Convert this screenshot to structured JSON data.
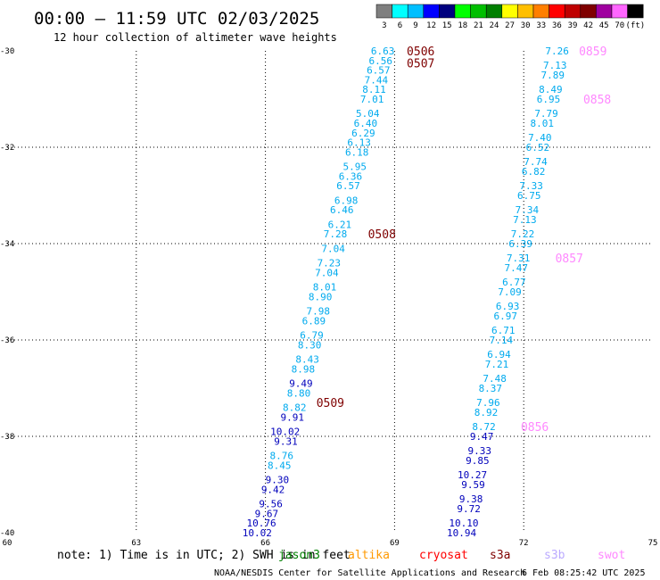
{
  "header": {
    "title": "00:00 – 11:59 UTC 02/03/2025",
    "subtitle": "12 hour collection of altimeter wave heights"
  },
  "colorbar": {
    "labels": [
      "3",
      "6",
      "9",
      "12",
      "15",
      "18",
      "21",
      "24",
      "27",
      "30",
      "33",
      "36",
      "39",
      "42",
      "45",
      "70",
      "(ft)"
    ],
    "colors": [
      "#7f7f7f",
      "#00ffff",
      "#00bfff",
      "#0000ff",
      "#00007f",
      "#00ff00",
      "#00bf00",
      "#007f00",
      "#ffff00",
      "#ffbf00",
      "#ff7f00",
      "#ff0000",
      "#bf0000",
      "#7f0000",
      "#9f009f",
      "#ff66ff",
      "#000000"
    ]
  },
  "footer": {
    "note": "note: 1) Time is in UTC; 2) SWH is in feet",
    "credit": "NOAA/NESDIS Center for Satellite Applications and Research",
    "timestamp": "6 Feb 08:25:42 UTC 2025"
  },
  "legend": [
    {
      "name": "jason3",
      "color": "#007f00"
    },
    {
      "name": "altika",
      "color": "#ff9900"
    },
    {
      "name": "cryosat",
      "color": "#ff0000"
    },
    {
      "name": "s3a",
      "color": "#7f0000"
    },
    {
      "name": "s3b",
      "color": "#bbaaff"
    },
    {
      "name": "swot",
      "color": "#ff88ff"
    }
  ],
  "chart_data": {
    "type": "scatter",
    "xlim": [
      60,
      75
    ],
    "ylim": [
      -40,
      -30
    ],
    "xticks": [
      60,
      63,
      66,
      69,
      72,
      75
    ],
    "yticks": [
      -30,
      -32,
      -34,
      -36,
      -38,
      -40
    ],
    "grid": true,
    "series": [
      {
        "name": "s3a",
        "color": "#7f0000",
        "passes": [
          {
            "label": "0506",
            "lon": 69.2,
            "lat": -30.0
          },
          {
            "label": "0507",
            "lon": 69.2,
            "lat": -30.25
          },
          {
            "label": "0508",
            "lon": 68.3,
            "lat": -33.8
          },
          {
            "label": "0509",
            "lon": 67.1,
            "lat": -37.3
          }
        ],
        "points": [
          {
            "lon": 69.0,
            "lat": -30.0,
            "v": "6.63"
          },
          {
            "lon": 68.95,
            "lat": -30.2,
            "v": "6.56"
          },
          {
            "lon": 68.9,
            "lat": -30.4,
            "v": "6.57"
          },
          {
            "lon": 68.85,
            "lat": -30.6,
            "v": "7.44"
          },
          {
            "lon": 68.8,
            "lat": -30.8,
            "v": "8.11"
          },
          {
            "lon": 68.75,
            "lat": -31.0,
            "v": "7.01"
          },
          {
            "lon": 68.65,
            "lat": -31.3,
            "v": "5.04"
          },
          {
            "lon": 68.6,
            "lat": -31.5,
            "v": "6.40"
          },
          {
            "lon": 68.55,
            "lat": -31.7,
            "v": "6.29"
          },
          {
            "lon": 68.45,
            "lat": -31.9,
            "v": "6.13"
          },
          {
            "lon": 68.4,
            "lat": -32.1,
            "v": "6.18"
          },
          {
            "lon": 68.35,
            "lat": -32.4,
            "v": "5.95"
          },
          {
            "lon": 68.25,
            "lat": -32.6,
            "v": "6.36"
          },
          {
            "lon": 68.2,
            "lat": -32.8,
            "v": "6.57"
          },
          {
            "lon": 68.15,
            "lat": -33.1,
            "v": "6.98"
          },
          {
            "lon": 68.05,
            "lat": -33.3,
            "v": "6.46"
          },
          {
            "lon": 68.0,
            "lat": -33.6,
            "v": "6.21"
          },
          {
            "lon": 67.9,
            "lat": -33.8,
            "v": "7.28"
          },
          {
            "lon": 67.85,
            "lat": -34.1,
            "v": "7.04"
          },
          {
            "lon": 67.75,
            "lat": -34.4,
            "v": "7.23"
          },
          {
            "lon": 67.7,
            "lat": -34.6,
            "v": "7.04"
          },
          {
            "lon": 67.65,
            "lat": -34.9,
            "v": "8.01"
          },
          {
            "lon": 67.55,
            "lat": -35.1,
            "v": "8.90"
          },
          {
            "lon": 67.5,
            "lat": -35.4,
            "v": "7.98"
          },
          {
            "lon": 67.4,
            "lat": -35.6,
            "v": "6.89"
          },
          {
            "lon": 67.35,
            "lat": -35.9,
            "v": "6.79"
          },
          {
            "lon": 67.3,
            "lat": -36.1,
            "v": "8.30"
          },
          {
            "lon": 67.25,
            "lat": -36.4,
            "v": "8.43"
          },
          {
            "lon": 67.15,
            "lat": -36.6,
            "v": "8.98"
          },
          {
            "lon": 67.1,
            "lat": -36.9,
            "v": "9.49"
          },
          {
            "lon": 67.05,
            "lat": -37.1,
            "v": "8.80"
          },
          {
            "lon": 66.95,
            "lat": -37.4,
            "v": "8.82"
          },
          {
            "lon": 66.9,
            "lat": -37.6,
            "v": "9.91"
          },
          {
            "lon": 66.8,
            "lat": -37.9,
            "v": "10.02"
          },
          {
            "lon": 66.75,
            "lat": -38.1,
            "v": "9.31"
          },
          {
            "lon": 66.65,
            "lat": -38.4,
            "v": "8.76"
          },
          {
            "lon": 66.6,
            "lat": -38.6,
            "v": "8.45"
          },
          {
            "lon": 66.55,
            "lat": -38.9,
            "v": "9.30"
          },
          {
            "lon": 66.45,
            "lat": -39.1,
            "v": "9.42"
          },
          {
            "lon": 66.4,
            "lat": -39.4,
            "v": "9.56"
          },
          {
            "lon": 66.3,
            "lat": -39.6,
            "v": "9.67"
          },
          {
            "lon": 66.25,
            "lat": -39.8,
            "v": "10.76"
          },
          {
            "lon": 66.15,
            "lat": -40.0,
            "v": "10.02"
          }
        ]
      },
      {
        "name": "swot",
        "color": "#ff88ff",
        "passes": [
          {
            "label": "0859",
            "lon": 73.2,
            "lat": -30.0
          },
          {
            "label": "0858",
            "lon": 73.3,
            "lat": -31.0
          },
          {
            "lon": 72.65,
            "lat": -34.3,
            "label": "0857"
          },
          {
            "label": "0856",
            "lon": 71.85,
            "lat": -37.8
          }
        ],
        "points": [
          {
            "lon": 73.05,
            "lat": -30.0,
            "v": "7.26"
          },
          {
            "lon": 73.0,
            "lat": -30.3,
            "v": "7.13"
          },
          {
            "lon": 72.95,
            "lat": -30.5,
            "v": "7.89"
          },
          {
            "lon": 72.9,
            "lat": -30.8,
            "v": "8.49"
          },
          {
            "lon": 72.85,
            "lat": -31.0,
            "v": "6.95"
          },
          {
            "lon": 72.8,
            "lat": -31.3,
            "v": "7.79"
          },
          {
            "lon": 72.7,
            "lat": -31.5,
            "v": "8.01"
          },
          {
            "lon": 72.65,
            "lat": -31.8,
            "v": "7.40"
          },
          {
            "lon": 72.6,
            "lat": -32.0,
            "v": "6.52"
          },
          {
            "lon": 72.55,
            "lat": -32.3,
            "v": "7.74"
          },
          {
            "lon": 72.5,
            "lat": -32.5,
            "v": "6.82"
          },
          {
            "lon": 72.45,
            "lat": -32.8,
            "v": "7.33"
          },
          {
            "lon": 72.4,
            "lat": -33.0,
            "v": "6.75"
          },
          {
            "lon": 72.35,
            "lat": -33.3,
            "v": "7.34"
          },
          {
            "lon": 72.3,
            "lat": -33.5,
            "v": "7.13"
          },
          {
            "lon": 72.25,
            "lat": -33.8,
            "v": "7.22"
          },
          {
            "lon": 72.2,
            "lat": -34.0,
            "v": "6.39"
          },
          {
            "lon": 72.15,
            "lat": -34.3,
            "v": "7.31"
          },
          {
            "lon": 72.1,
            "lat": -34.5,
            "v": "7.47"
          },
          {
            "lon": 72.05,
            "lat": -34.8,
            "v": "6.77"
          },
          {
            "lon": 71.95,
            "lat": -35.0,
            "v": "7.09"
          },
          {
            "lon": 71.9,
            "lat": -35.3,
            "v": "6.93"
          },
          {
            "lon": 71.85,
            "lat": -35.5,
            "v": "6.97"
          },
          {
            "lon": 71.8,
            "lat": -35.8,
            "v": "6.71"
          },
          {
            "lon": 71.75,
            "lat": -36.0,
            "v": "7.14"
          },
          {
            "lon": 71.7,
            "lat": -36.3,
            "v": "6.94"
          },
          {
            "lon": 71.65,
            "lat": -36.5,
            "v": "7.21"
          },
          {
            "lon": 71.6,
            "lat": -36.8,
            "v": "7.48"
          },
          {
            "lon": 71.5,
            "lat": -37.0,
            "v": "8.37"
          },
          {
            "lon": 71.45,
            "lat": -37.3,
            "v": "7.96"
          },
          {
            "lon": 71.4,
            "lat": -37.5,
            "v": "8.92"
          },
          {
            "lon": 71.35,
            "lat": -37.8,
            "v": "8.72"
          },
          {
            "lon": 71.3,
            "lat": -38.0,
            "v": "9.47"
          },
          {
            "lon": 71.25,
            "lat": -38.3,
            "v": "9.33"
          },
          {
            "lon": 71.2,
            "lat": -38.5,
            "v": "9.85"
          },
          {
            "lon": 71.15,
            "lat": -38.8,
            "v": "10.27"
          },
          {
            "lon": 71.1,
            "lat": -39.0,
            "v": "9.59"
          },
          {
            "lon": 71.05,
            "lat": -39.3,
            "v": "9.38"
          },
          {
            "lon": 71.0,
            "lat": -39.5,
            "v": "9.72"
          },
          {
            "lon": 70.95,
            "lat": -39.8,
            "v": "10.10"
          },
          {
            "lon": 70.9,
            "lat": -40.0,
            "v": "10.94"
          }
        ]
      }
    ]
  }
}
